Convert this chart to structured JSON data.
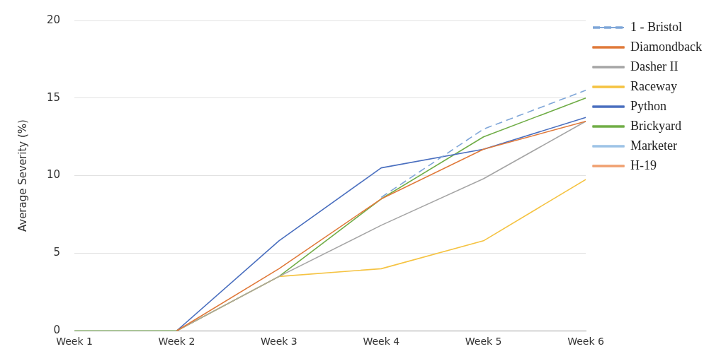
{
  "chart_data": {
    "type": "line",
    "ylabel": "Average Severity (%)",
    "categories": [
      "Week 1",
      "Week 2",
      "Week 3",
      "Week 4",
      "Week 5",
      "Week 6"
    ],
    "ylim": [
      0,
      20
    ],
    "yticks": [
      0,
      5,
      10,
      15,
      20
    ],
    "grid": "y",
    "legend": "top right",
    "marker": "none",
    "series": [
      {
        "name": "1 - Bristol",
        "color": "#7fa6d8",
        "line_style": "dashed",
        "values": [
          null,
          null,
          null,
          8.6,
          13.0,
          15.5
        ]
      },
      {
        "name": "Diamondback",
        "color": "#e0793a",
        "values": [
          null,
          0,
          4.0,
          8.5,
          11.7,
          13.5
        ]
      },
      {
        "name": "Dasher II",
        "color": "#a5a5a5",
        "values": [
          null,
          0,
          3.5,
          6.8,
          9.8,
          13.5
        ]
      },
      {
        "name": "Raceway",
        "color": "#f5c342",
        "values": [
          null,
          0,
          3.5,
          4.0,
          5.8,
          9.75
        ]
      },
      {
        "name": "Python",
        "color": "#4a6fbf",
        "values": [
          null,
          0,
          5.8,
          10.5,
          11.7,
          13.75
        ]
      },
      {
        "name": "Brickyard",
        "color": "#70ad47",
        "values": [
          0,
          0,
          3.5,
          8.5,
          12.5,
          15.0
        ]
      },
      {
        "name": "Marketer",
        "color": "#9dc3e6",
        "values": [
          null,
          null,
          null,
          null,
          null,
          null
        ]
      },
      {
        "name": "H-19",
        "color": "#f0a070",
        "values": [
          null,
          null,
          null,
          null,
          null,
          null
        ]
      }
    ]
  }
}
